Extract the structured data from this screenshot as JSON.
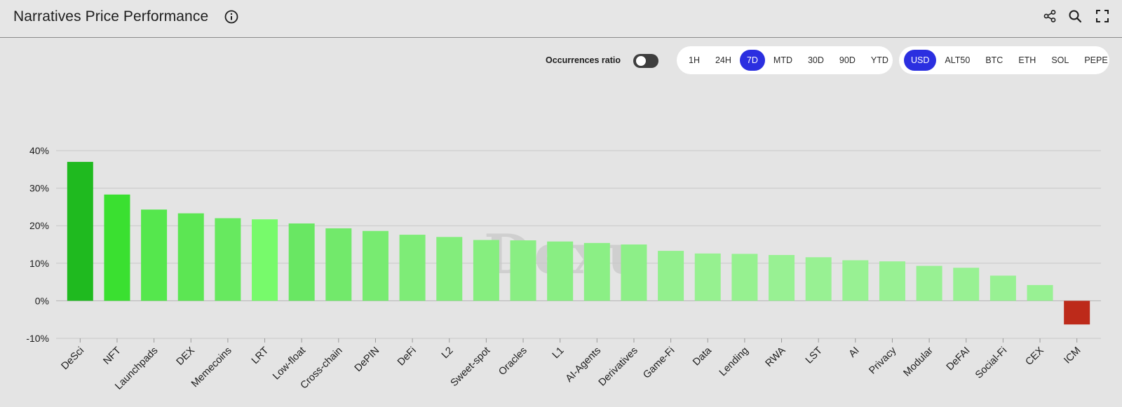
{
  "header": {
    "title": "Narratives Price Performance",
    "icons": [
      "info-icon",
      "share-icon",
      "search-icon",
      "expand-icon"
    ]
  },
  "controls": {
    "occurrences_label": "Occurrences ratio",
    "occurrences_on": false,
    "timeframes": [
      "1H",
      "24H",
      "7D",
      "MTD",
      "30D",
      "90D",
      "YTD"
    ],
    "selected_timeframe": "7D",
    "currencies": [
      "USD",
      "ALT50",
      "BTC",
      "ETH",
      "SOL",
      "PEPE"
    ],
    "selected_currency": "USD",
    "accent_color": "#2b2fe0"
  },
  "chart_data": {
    "type": "bar",
    "categories": [
      "DeSci",
      "NFT",
      "Launchpads",
      "DEX",
      "Memecoins",
      "LRT",
      "Low-float",
      "Cross-chain",
      "DePIN",
      "DeFi",
      "L2",
      "Sweet-spot",
      "Oracles",
      "L1",
      "AI-Agents",
      "Derivatives",
      "Game-Fi",
      "Data",
      "Lending",
      "RWA",
      "LST",
      "AI",
      "Privacy",
      "Modular",
      "DeFAI",
      "Social-Fi",
      "CEX",
      "ICM"
    ],
    "values": [
      37.0,
      28.3,
      24.3,
      23.3,
      22.0,
      21.7,
      20.6,
      19.3,
      18.6,
      17.6,
      17.0,
      16.2,
      16.1,
      15.8,
      15.4,
      15.0,
      13.3,
      12.6,
      12.5,
      12.2,
      11.6,
      10.8,
      10.5,
      9.3,
      8.8,
      6.7,
      4.2,
      -6.3
    ],
    "bar_colors": [
      "#1fba1f",
      "#3ae030",
      "#55e74d",
      "#5ce653",
      "#67e95f",
      "#77fa6b",
      "#69e763",
      "#72e96b",
      "#78eb71",
      "#7eec77",
      "#83ed7c",
      "#86ee7f",
      "#89ee83",
      "#89ee83",
      "#8bef85",
      "#8def88",
      "#92f08d",
      "#96f190",
      "#96f190",
      "#98f193",
      "#98f193",
      "#98f193",
      "#98f193",
      "#98f193",
      "#98f193",
      "#98f193",
      "#98f193",
      "#bd2a1a"
    ],
    "y_ticks": [
      "40%",
      "30%",
      "20%",
      "10%",
      "0%",
      "-10%"
    ],
    "y_tick_values": [
      40,
      30,
      20,
      10,
      0,
      -10
    ],
    "ylim": [
      -10,
      40
    ],
    "grid": true,
    "xlabel": "",
    "ylabel": ""
  },
  "watermark_text": "Dexu"
}
